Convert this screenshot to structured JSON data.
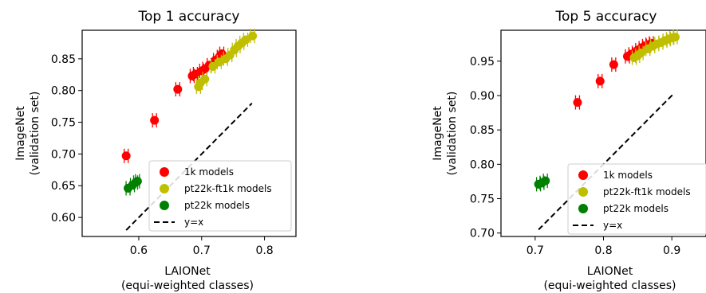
{
  "chart_data": [
    {
      "type": "scatter",
      "title": "Top 1 accuracy",
      "xlabel": [
        "LAIONet",
        "(equi-weighted classes)"
      ],
      "ylabel": [
        "ImageNet",
        "(validation set)"
      ],
      "xlim": [
        0.51,
        0.85
      ],
      "ylim": [
        0.57,
        0.895
      ],
      "xticks": [
        {
          "v": 0.6,
          "label": "0.6"
        },
        {
          "v": 0.7,
          "label": "0.7"
        },
        {
          "v": 0.8,
          "label": "0.8"
        }
      ],
      "yticks": [
        {
          "v": 0.6,
          "label": "0.60"
        },
        {
          "v": 0.65,
          "label": "0.65"
        },
        {
          "v": 0.7,
          "label": "0.70"
        },
        {
          "v": 0.75,
          "label": "0.75"
        },
        {
          "v": 0.8,
          "label": "0.80"
        },
        {
          "v": 0.85,
          "label": "0.85"
        }
      ],
      "legend_position": "bottom-right",
      "reference_line": {
        "name": "y=x",
        "from": [
          0.58,
          0.58
        ],
        "to": [
          0.78,
          0.78
        ]
      },
      "series": [
        {
          "name": "1k models",
          "color": "#ff0000",
          "points": [
            [
              0.58,
              0.697
            ],
            [
              0.625,
              0.753
            ],
            [
              0.662,
              0.802
            ],
            [
              0.685,
              0.823
            ],
            [
              0.69,
              0.826
            ],
            [
              0.7,
              0.831
            ],
            [
              0.705,
              0.834
            ],
            [
              0.712,
              0.84
            ],
            [
              0.722,
              0.848
            ],
            [
              0.728,
              0.853
            ],
            [
              0.732,
              0.858
            ]
          ]
        },
        {
          "name": "pt22k-ft1k models",
          "color": "#bfbf00",
          "points": [
            [
              0.695,
              0.806
            ],
            [
              0.698,
              0.812
            ],
            [
              0.705,
              0.818
            ],
            [
              0.718,
              0.838
            ],
            [
              0.728,
              0.845
            ],
            [
              0.738,
              0.85
            ],
            [
              0.745,
              0.856
            ],
            [
              0.752,
              0.864
            ],
            [
              0.758,
              0.87
            ],
            [
              0.764,
              0.875
            ],
            [
              0.77,
              0.88
            ],
            [
              0.781,
              0.886
            ]
          ]
        },
        {
          "name": "pt22k models",
          "color": "#008000",
          "points": [
            [
              0.583,
              0.646
            ],
            [
              0.59,
              0.651
            ],
            [
              0.595,
              0.655
            ],
            [
              0.598,
              0.657
            ]
          ]
        }
      ]
    },
    {
      "type": "scatter",
      "title": "Top 5 accuracy",
      "xlabel": [
        "LAIONet",
        "(equi-weighted classes)"
      ],
      "ylabel": [
        "ImageNet",
        "(validation set)"
      ],
      "xlim": [
        0.65,
        0.95
      ],
      "ylim": [
        0.695,
        0.995
      ],
      "xticks": [
        {
          "v": 0.7,
          "label": "0.7"
        },
        {
          "v": 0.8,
          "label": "0.8"
        },
        {
          "v": 0.9,
          "label": "0.9"
        }
      ],
      "yticks": [
        {
          "v": 0.7,
          "label": "0.70"
        },
        {
          "v": 0.75,
          "label": "0.75"
        },
        {
          "v": 0.8,
          "label": "0.80"
        },
        {
          "v": 0.85,
          "label": "0.85"
        },
        {
          "v": 0.9,
          "label": "0.90"
        },
        {
          "v": 0.95,
          "label": "0.95"
        }
      ],
      "legend_position": "bottom-right",
      "reference_line": {
        "name": "y=x",
        "from": [
          0.705,
          0.705
        ],
        "to": [
          0.903,
          0.903
        ]
      },
      "series": [
        {
          "name": "1k models",
          "color": "#ff0000",
          "points": [
            [
              0.762,
              0.89
            ],
            [
              0.795,
              0.921
            ],
            [
              0.815,
              0.945
            ],
            [
              0.835,
              0.957
            ],
            [
              0.84,
              0.96
            ],
            [
              0.845,
              0.962
            ],
            [
              0.85,
              0.966
            ],
            [
              0.855,
              0.969
            ],
            [
              0.86,
              0.972
            ],
            [
              0.865,
              0.974
            ],
            [
              0.87,
              0.976
            ]
          ]
        },
        {
          "name": "pt22k-ft1k models",
          "color": "#bfbf00",
          "points": [
            [
              0.845,
              0.955
            ],
            [
              0.85,
              0.958
            ],
            [
              0.855,
              0.962
            ],
            [
              0.865,
              0.968
            ],
            [
              0.872,
              0.972
            ],
            [
              0.878,
              0.975
            ],
            [
              0.884,
              0.977
            ],
            [
              0.89,
              0.98
            ],
            [
              0.895,
              0.982
            ],
            [
              0.9,
              0.984
            ],
            [
              0.905,
              0.985
            ]
          ]
        },
        {
          "name": "pt22k models",
          "color": "#008000",
          "points": [
            [
              0.705,
              0.771
            ],
            [
              0.71,
              0.773
            ],
            [
              0.715,
              0.776
            ]
          ]
        }
      ]
    }
  ]
}
